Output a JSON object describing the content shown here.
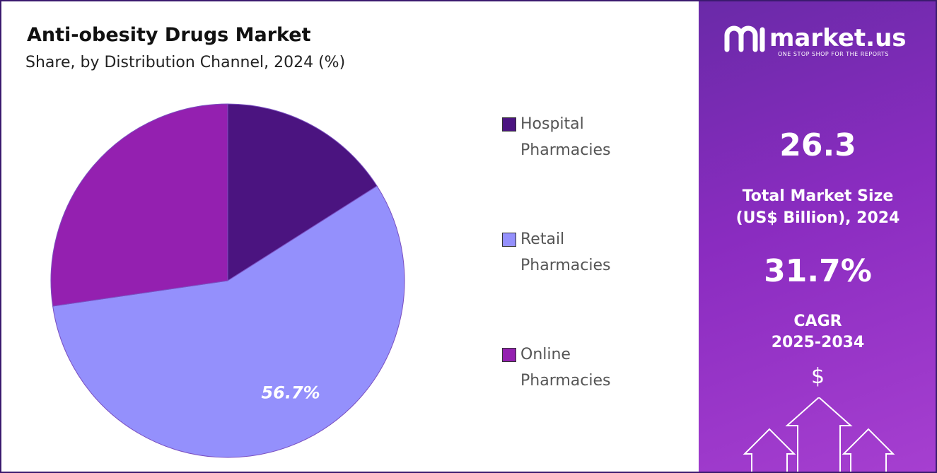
{
  "chart_data": {
    "type": "pie",
    "title": "Anti-obesity Drugs Market",
    "subtitle": "Share, by Distribution Channel, 2024 (%)",
    "categories": [
      "Hospital Pharmacies",
      "Retail Pharmacies",
      "Online Pharmacies"
    ],
    "values": [
      16,
      56.7,
      27.3
    ],
    "value_labels": [
      null,
      "56.7%",
      null
    ],
    "colors": [
      "#4b1480",
      "#9490fc",
      "#9420b0"
    ]
  },
  "sidebar": {
    "brand": "market.us",
    "tagline": "ONE STOP SHOP FOR THE REPORTS",
    "market_size": "26.3",
    "market_size_label": [
      "Total Market Size",
      "(US$ Billion), 2024"
    ],
    "cagr": "31.7%",
    "cagr_label": [
      "CAGR",
      "2025-2034"
    ],
    "currency": "$"
  }
}
